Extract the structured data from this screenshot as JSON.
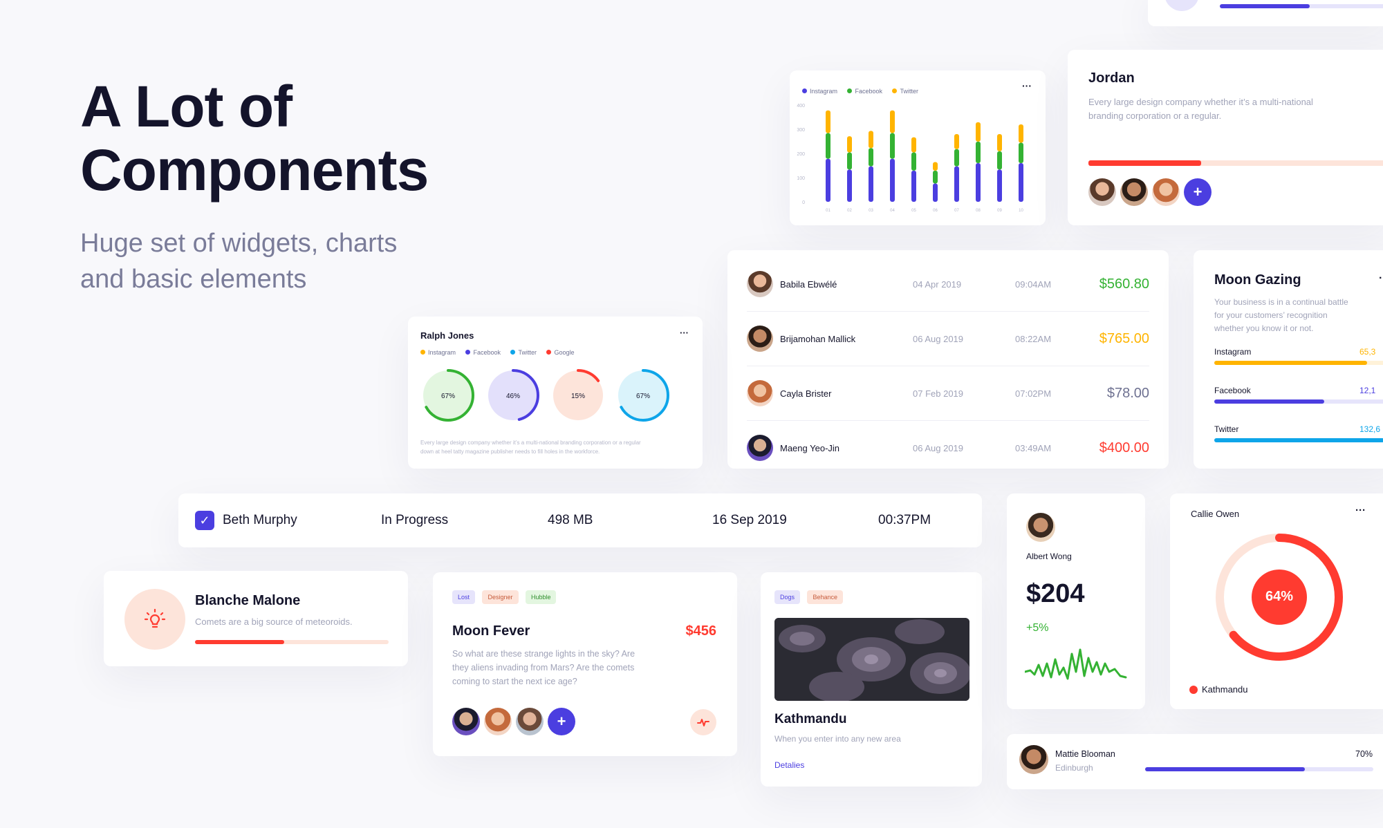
{
  "hero": {
    "title_line1": "A Lot of",
    "title_line2": "Components",
    "subtitle_line1": "Huge set of widgets, charts",
    "subtitle_line2": "and basic elements"
  },
  "colors": {
    "primary": "#4b3ee0",
    "green": "#34b233",
    "yellow": "#ffb400",
    "red": "#ff3b30",
    "cyan": "#0ea5e9"
  },
  "bar_card": {
    "legend": [
      "Instagram",
      "Facebook",
      "Twitter"
    ],
    "menu": "···",
    "chart_data": {
      "type": "bar",
      "stacked": true,
      "categories": [
        "01",
        "02",
        "03",
        "04",
        "05",
        "06",
        "07",
        "08",
        "09",
        "10"
      ],
      "yticks": [
        "400",
        "300",
        "200",
        "100",
        "0"
      ],
      "ylim": [
        0,
        450
      ],
      "series": [
        {
          "name": "Instagram",
          "color": "#4b3ee0",
          "values": [
            200,
            150,
            165,
            200,
            145,
            85,
            165,
            180,
            150,
            180
          ]
        },
        {
          "name": "Facebook",
          "color": "#34b233",
          "values": [
            120,
            80,
            85,
            120,
            85,
            60,
            80,
            100,
            85,
            95
          ]
        },
        {
          "name": "Twitter",
          "color": "#ffb400",
          "values": [
            105,
            75,
            80,
            105,
            70,
            40,
            70,
            90,
            80,
            85
          ]
        }
      ]
    }
  },
  "jordan_card": {
    "name": "Jordan",
    "desc_line1": "Every large design company whether it’s a multi-national",
    "desc_line2": "branding corporation or a regular.",
    "progress": 0.37,
    "plus": "+"
  },
  "transactions": [
    {
      "name": "Babila Ebwélé",
      "date": "04 Apr 2019",
      "time": "09:04AM",
      "amount": "$560.80",
      "color": "#34b233"
    },
    {
      "name": "Brijamohan Mallick",
      "date": "06 Aug 2019",
      "time": "08:22AM",
      "amount": "$765.00",
      "color": "#ffb400"
    },
    {
      "name": "Cayla Brister",
      "date": "07 Feb 2019",
      "time": "07:02PM",
      "amount": "$78.00",
      "color": "#6e7191"
    },
    {
      "name": "Maeng Yeo-Jin",
      "date": "06 Aug 2019",
      "time": "03:49AM",
      "amount": "$400.00",
      "color": "#ff3b30"
    }
  ],
  "moon_gazing": {
    "title": "Moon Gazing",
    "desc_line1": "Your business is in a continual battle",
    "desc_line2": "for your customers’ recognition",
    "desc_line3": "whether you know it or not.",
    "rows": [
      {
        "label": "Instagram",
        "value": "65,3",
        "fill": 0.82,
        "color": "#ffb400",
        "track": "#fff2d9"
      },
      {
        "label": "Facebook",
        "value": "12,1",
        "fill": 0.59,
        "color": "#4b3ee0",
        "track": "#e6e4fb"
      },
      {
        "label": "Twitter",
        "value": "132,6",
        "fill": 0.91,
        "color": "#0ea5e9",
        "track": "#dcf1fb"
      }
    ]
  },
  "ralph_card": {
    "name": "Ralph Jones",
    "menu": "···",
    "legend": [
      "Instagram",
      "Facebook",
      "Twitter",
      "Google"
    ],
    "rings": [
      {
        "label": "67%",
        "value": 0.67,
        "color": "#34b233",
        "bg": "#e3f6e0"
      },
      {
        "label": "46%",
        "value": 0.46,
        "color": "#4b3ee0",
        "bg": "#e3e0fb"
      },
      {
        "label": "15%",
        "value": 0.15,
        "color": "#ff3b30",
        "bg": "#fde4da"
      },
      {
        "label": "67%",
        "value": 0.67,
        "color": "#0ea5e9",
        "bg": "#daf3fb"
      }
    ],
    "desc_line1": "Every large design company whether it’s a multi-national branding corporation or a regular",
    "desc_line2": "down at heel tatty magazine publisher needs to fill holes in the workforce."
  },
  "task_row": {
    "name": "Beth Murphy",
    "status": "In Progress",
    "size": "498 MB",
    "date": "16 Sep 2019",
    "time": "00:37PM"
  },
  "blanche": {
    "name": "Blanche Malone",
    "desc": "Comets are a big source of meteoroids.",
    "progress": 0.46
  },
  "moon_fever": {
    "tags": [
      "Lost",
      "Designer",
      "Hubble"
    ],
    "title": "Moon Fever",
    "price": "$456",
    "desc_line1": "So what are these strange lights in the sky? Are",
    "desc_line2": "they aliens invading from Mars? Are the comets",
    "desc_line3": "coming to start the next ice age?",
    "plus": "+"
  },
  "kathmandu": {
    "tags": [
      "Dogs",
      "Behance"
    ],
    "title": "Kathmandu",
    "desc": "When you enter into any new area",
    "link": "Detalies"
  },
  "albert": {
    "name": "Albert Wong",
    "amount": "$204",
    "change": "+5%"
  },
  "callie": {
    "name": "Callie Owen",
    "menu": "···",
    "percent_label": "64%",
    "value": 0.64,
    "legend": "Kathmandu"
  },
  "mattie": {
    "name": "Mattie Blooman",
    "location": "Edinburgh",
    "percent_label": "70%",
    "value": 0.7
  }
}
